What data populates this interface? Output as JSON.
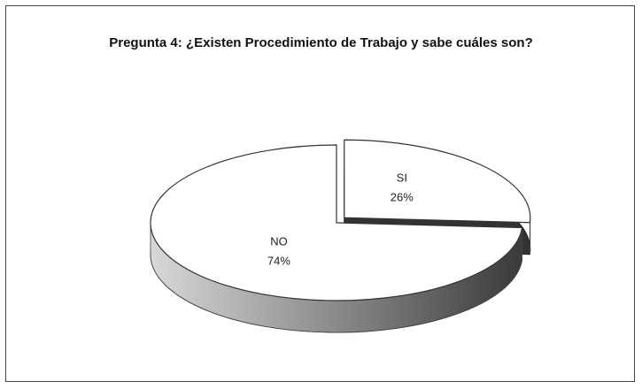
{
  "chart_data": {
    "type": "pie3d",
    "title": "Pregunta 4: ¿Existen Procedimiento de Trabajo y sabe cuáles son?",
    "categories": [
      "SI",
      "NO"
    ],
    "values": [
      26,
      74
    ],
    "value_labels": [
      "26%",
      "74%"
    ],
    "colors": [
      "#ffffff",
      "#ffffff"
    ],
    "exploded": [
      true,
      false
    ]
  }
}
